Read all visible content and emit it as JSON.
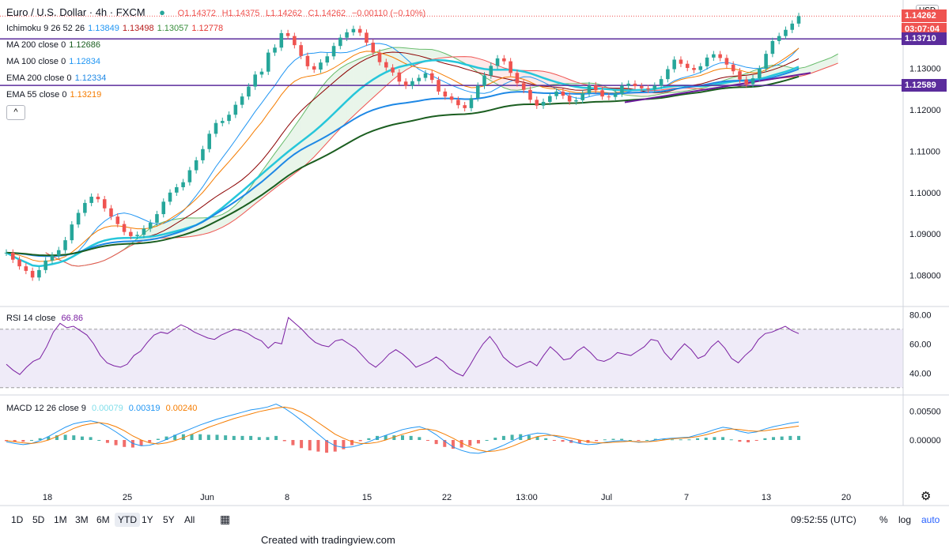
{
  "header": {
    "symbol": "Euro / U.S. Dollar · 4h · FXCM",
    "ohlc": {
      "o": "O1.14372",
      "h": "H1.14375",
      "l": "L1.14262",
      "c": "C1.14262",
      "chg": "−0.00110 (−0.10%)"
    },
    "currency": "USD"
  },
  "indicators": [
    {
      "label": "Ichimoku 9 26 52 26",
      "values": [
        "1.13849",
        "1.13498",
        "1.13057",
        "1.12778"
      ],
      "colors": [
        "#2196f3",
        "#b71c1c",
        "#388e3c",
        "#e53935"
      ]
    },
    {
      "label": "MA 200 close 0",
      "values": [
        "1.12686"
      ],
      "colors": [
        "#1b5e20"
      ]
    },
    {
      "label": "MA 100 close 0",
      "values": [
        "1.12834"
      ],
      "colors": [
        "#2196f3"
      ]
    },
    {
      "label": "EMA 200 close 0",
      "values": [
        "1.12334"
      ],
      "colors": [
        "#1e88e5"
      ]
    },
    {
      "label": "EMA 55 close 0",
      "values": [
        "1.13219"
      ],
      "colors": [
        "#f57c00"
      ]
    }
  ],
  "price_tags": [
    {
      "value": "1.14262",
      "color": "#ef5350"
    },
    {
      "value": "03:07:04",
      "color": "#ef5350"
    },
    {
      "value": "1.13710",
      "color": "#5b2c9c"
    },
    {
      "value": "1.12589",
      "color": "#5b2c9c"
    }
  ],
  "rsi": {
    "label": "RSI 14 close",
    "value": "66.86"
  },
  "macd": {
    "label": "MACD 12 26 close 9",
    "values": [
      "0.00079",
      "0.00319",
      "0.00240"
    ]
  },
  "timeframes": [
    "1D",
    "5D",
    "1M",
    "3M",
    "6M",
    "YTD",
    "1Y",
    "5Y",
    "All"
  ],
  "active_timeframe": "YTD",
  "clock": "09:52:55 (UTC)",
  "footer_controls": [
    "%",
    "log",
    "auto"
  ],
  "credit": "Created with tradingview.com",
  "collapse_label": "^",
  "chart_data": {
    "type": "candlestick",
    "price_axis_ticks": [
      "1.14000",
      "1.13000",
      "1.12000",
      "1.11000",
      "1.10000",
      "1.09000",
      "1.08000"
    ],
    "rsi_axis_ticks": [
      "80.00",
      "60.00",
      "40.00"
    ],
    "macd_axis_ticks": [
      "0.00500",
      "0.00000"
    ],
    "time_labels": [
      "18",
      "25",
      "Jun",
      "8",
      "15",
      "22",
      "13:00",
      "Jul",
      "7",
      "13",
      "20"
    ],
    "horizontal_levels": [
      1.1371,
      1.12589
    ],
    "last_price": 1.14262,
    "price_range": [
      1.0725,
      1.1465
    ],
    "rsi_bands": [
      70,
      30
    ],
    "closes": [
      1.0855,
      1.0838,
      1.0822,
      1.0811,
      1.0795,
      1.0813,
      1.0836,
      1.0848,
      1.0861,
      1.0885,
      1.0923,
      1.0951,
      1.0975,
      1.099,
      1.0984,
      1.0962,
      1.0942,
      1.0924,
      1.0905,
      1.0895,
      1.0898,
      1.0913,
      1.0927,
      1.0948,
      1.0978,
      1.1,
      1.1013,
      1.1025,
      1.1054,
      1.1078,
      1.1105,
      1.1142,
      1.1168,
      1.1173,
      1.1188,
      1.1212,
      1.1232,
      1.1256,
      1.1285,
      1.1292,
      1.1338,
      1.135,
      1.1385,
      1.1378,
      1.1356,
      1.133,
      1.1305,
      1.1297,
      1.1314,
      1.1329,
      1.1354,
      1.1374,
      1.1387,
      1.1395,
      1.1386,
      1.1362,
      1.1338,
      1.1315,
      1.1302,
      1.129,
      1.1268,
      1.1258,
      1.1269,
      1.1277,
      1.1288,
      1.1272,
      1.1244,
      1.1232,
      1.1224,
      1.1211,
      1.1204,
      1.1228,
      1.1258,
      1.1283,
      1.1306,
      1.1324,
      1.1317,
      1.1289,
      1.1264,
      1.1248,
      1.1224,
      1.121,
      1.1219,
      1.1233,
      1.1244,
      1.1234,
      1.122,
      1.1223,
      1.124,
      1.1259,
      1.1247,
      1.1232,
      1.1231,
      1.1239,
      1.1258,
      1.1263,
      1.1257,
      1.1252,
      1.1249,
      1.1258,
      1.1274,
      1.1298,
      1.1321,
      1.1311,
      1.1301,
      1.1296,
      1.1305,
      1.1326,
      1.1334,
      1.1325,
      1.1309,
      1.1293,
      1.1273,
      1.1262,
      1.1276,
      1.1299,
      1.1335,
      1.1366,
      1.1378,
      1.1393,
      1.1408,
      1.1426
    ],
    "rsi_values": [
      46,
      42,
      39,
      44,
      48,
      50,
      58,
      68,
      74,
      71,
      72,
      69,
      66,
      60,
      52,
      47,
      45,
      44,
      46,
      52,
      55,
      61,
      66,
      68,
      67,
      70,
      73,
      71,
      68,
      66,
      64,
      63,
      66,
      68,
      70,
      69,
      67,
      64,
      62,
      57,
      61,
      60,
      78,
      74,
      70,
      65,
      61,
      59,
      58,
      62,
      63,
      60,
      57,
      52,
      47,
      44,
      48,
      53,
      56,
      53,
      49,
      44,
      46,
      48,
      51,
      48,
      43,
      40,
      38,
      45,
      53,
      60,
      65,
      59,
      51,
      47,
      44,
      46,
      48,
      45,
      52,
      58,
      54,
      49,
      50,
      55,
      58,
      54,
      49,
      48,
      50,
      54,
      53,
      52,
      55,
      58,
      63,
      62,
      54,
      49,
      55,
      60,
      56,
      50,
      52,
      58,
      62,
      57,
      50,
      47,
      52,
      56,
      63,
      67,
      68,
      70,
      72,
      69,
      67
    ],
    "macd_line": [
      -0.0003,
      -0.0006,
      -0.0008,
      -0.0006,
      -0.0001,
      0.0006,
      0.0014,
      0.0022,
      0.0028,
      0.0031,
      0.0033,
      0.003,
      0.0023,
      0.0014,
      0.0004,
      -0.0006,
      -0.001,
      -0.0009,
      -0.0005,
      0.0001,
      0.0008,
      0.0014,
      0.002,
      0.0026,
      0.0031,
      0.0036,
      0.004,
      0.0044,
      0.0048,
      0.0052,
      0.0054,
      0.0057,
      0.0062,
      0.0055,
      0.0045,
      0.0034,
      0.0022,
      0.001,
      -0.0002,
      -0.001,
      -0.0013,
      -0.0012,
      -0.0008,
      -0.0003,
      0.0003,
      0.0008,
      0.0013,
      0.0018,
      0.0021,
      0.0023,
      0.0018,
      0.0009,
      -0.0002,
      -0.0012,
      -0.0018,
      -0.0022,
      -0.0023,
      -0.002,
      -0.0015,
      -0.0009,
      -0.0002,
      0.0005,
      0.0009,
      0.0012,
      0.0011,
      0.0007,
      0.0003,
      -0.0002,
      -0.0006,
      -0.0008,
      -0.0007,
      -0.0004,
      -0.0002,
      -0.0001,
      -0.0002,
      -0.0004,
      -0.0003,
      0.0,
      0.0002,
      0.0003,
      0.0004,
      0.0005,
      0.0009,
      0.0013,
      0.0018,
      0.0022,
      0.002,
      0.0015,
      0.0012,
      0.0014,
      0.0019,
      0.0023,
      0.0026,
      0.0029,
      0.0031
    ],
    "signal_line": [
      -0.0001,
      -0.0003,
      -0.0005,
      -0.0006,
      -0.0004,
      0.0,
      0.0006,
      0.0013,
      0.002,
      0.0025,
      0.0028,
      0.003,
      0.0028,
      0.0023,
      0.0016,
      0.0007,
      0.0,
      -0.0005,
      -0.0007,
      -0.0005,
      -0.0001,
      0.0004,
      0.001,
      0.0016,
      0.0022,
      0.0027,
      0.0032,
      0.0037,
      0.0041,
      0.0045,
      0.0049,
      0.0052,
      0.0055,
      0.0057,
      0.0054,
      0.0048,
      0.004,
      0.003,
      0.002,
      0.001,
      0.0003,
      -0.0003,
      -0.0006,
      -0.0006,
      -0.0004,
      0.0,
      0.0005,
      0.001,
      0.0014,
      0.0018,
      0.0019,
      0.0016,
      0.001,
      0.0003,
      -0.0005,
      -0.0012,
      -0.0017,
      -0.002,
      -0.0019,
      -0.0016,
      -0.0011,
      -0.0005,
      0.0001,
      0.0006,
      0.0008,
      0.0008,
      0.0006,
      0.0003,
      0.0,
      -0.0003,
      -0.0005,
      -0.0005,
      -0.0004,
      -0.0003,
      -0.0002,
      -0.0003,
      -0.0003,
      -0.0002,
      0.0,
      0.0002,
      0.0003,
      0.0004,
      0.0006,
      0.0009,
      0.0013,
      0.0017,
      0.0019,
      0.0018,
      0.0016,
      0.0015,
      0.0016,
      0.0018,
      0.002,
      0.0022,
      0.0024
    ]
  }
}
